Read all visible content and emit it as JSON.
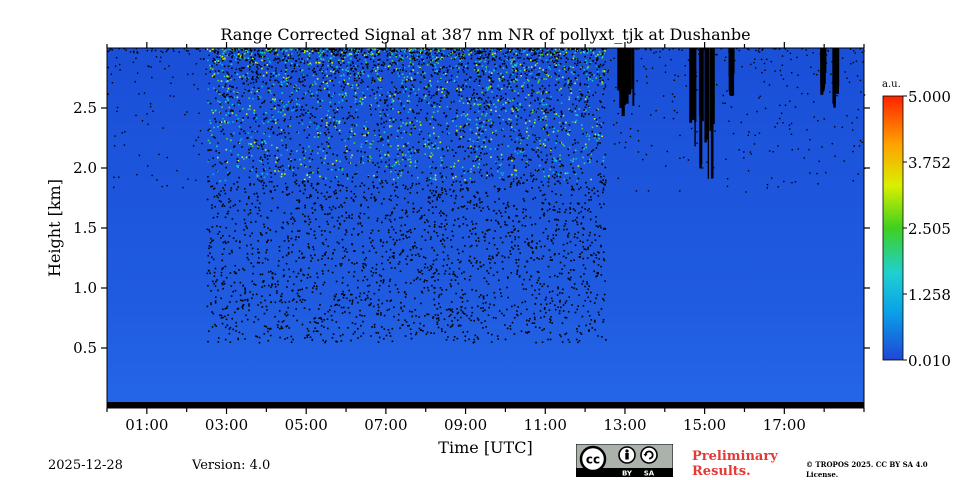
{
  "chart_data": {
    "type": "heatmap",
    "title": "Range Corrected Signal at 387 nm NR of pollyxt_tjk at Dushanbe",
    "xlabel": "Time [UTC]",
    "ylabel": "Height [km]",
    "xlim_hours": [
      0,
      19
    ],
    "ylim_km": [
      0,
      3.0
    ],
    "x_ticks": [
      {
        "hour": 1,
        "label": "01:00"
      },
      {
        "hour": 3,
        "label": "03:00"
      },
      {
        "hour": 5,
        "label": "05:00"
      },
      {
        "hour": 7,
        "label": "07:00"
      },
      {
        "hour": 9,
        "label": "09:00"
      },
      {
        "hour": 11,
        "label": "11:00"
      },
      {
        "hour": 13,
        "label": "13:00"
      },
      {
        "hour": 15,
        "label": "15:00"
      },
      {
        "hour": 17,
        "label": "17:00"
      }
    ],
    "y_ticks": [
      {
        "value": 0.5,
        "label": "0.5"
      },
      {
        "value": 1.0,
        "label": "1.0"
      },
      {
        "value": 1.5,
        "label": "1.5"
      },
      {
        "value": 2.0,
        "label": "2.0"
      },
      {
        "value": 2.5,
        "label": "2.5"
      }
    ],
    "colorbar": {
      "unit": "a.u.",
      "min": 0.01,
      "max": 5.0,
      "tick_labels": [
        "5.000",
        "3.752",
        "2.505",
        "1.258",
        "0.010"
      ],
      "colormap": "jet"
    },
    "noise_region_hours": [
      2.5,
      12.5
    ],
    "cloud_features": [
      {
        "start_hour": 12.8,
        "end_hour": 13.5,
        "bottom_km": 2.4
      },
      {
        "start_hour": 14.6,
        "end_hour": 15.2,
        "bottom_km": 1.9
      },
      {
        "start_hour": 15.6,
        "end_hour": 15.7,
        "bottom_km": 2.6
      },
      {
        "start_hour": 17.9,
        "end_hour": 18.0,
        "bottom_km": 2.6
      },
      {
        "start_hour": 18.2,
        "end_hour": 18.3,
        "bottom_km": 2.5
      }
    ]
  },
  "footer": {
    "date": "2025-12-28",
    "version": "Version: 4.0",
    "cc_label": "cc",
    "cc_by": "BY",
    "cc_sa": "SA",
    "preliminary": "Preliminary Results.",
    "copyright": "© TROPOS 2025. CC BY SA 4.0 License."
  },
  "colors": {
    "background_signal": "#1f5be0",
    "noise_dark": "#000000",
    "cbar_low": "#1f46d6",
    "cbar_high": "#ff2200",
    "preliminary_text": "#e53935"
  }
}
